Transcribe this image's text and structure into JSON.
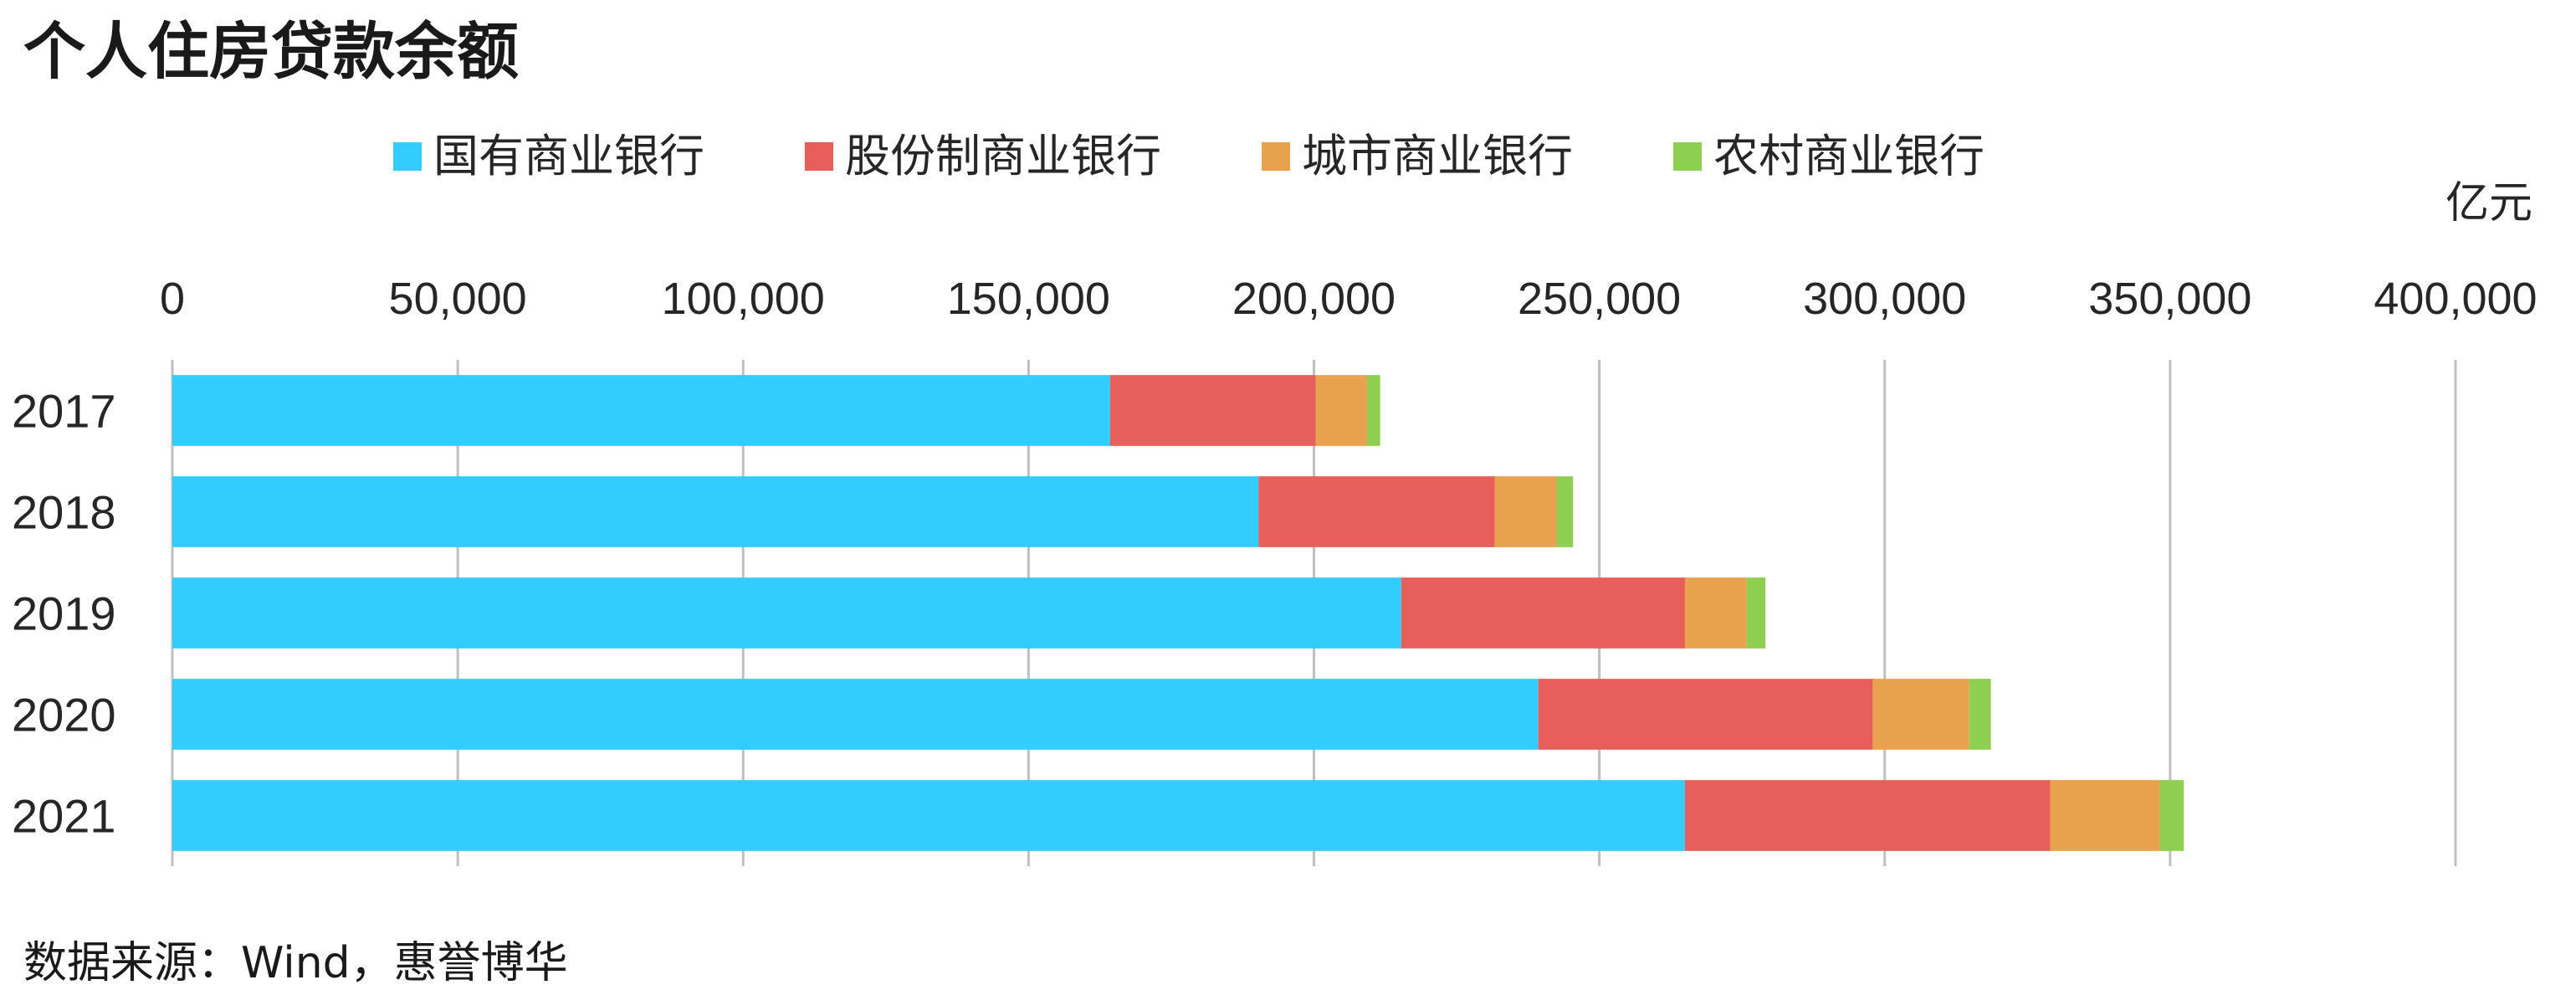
{
  "chart_data": {
    "type": "bar",
    "orientation": "horizontal",
    "stacked": true,
    "title": "个人住房贷款余额",
    "unit_label": "亿元",
    "categories": [
      "2017",
      "2018",
      "2019",
      "2020",
      "2021"
    ],
    "series": [
      {
        "name": "国有商业银行",
        "color": "#33CCFF",
        "values": [
          164300,
          190300,
          215300,
          239300,
          265000
        ]
      },
      {
        "name": "股份制商业银行",
        "color": "#E85E5A",
        "values": [
          36000,
          41400,
          49700,
          58600,
          64000
        ]
      },
      {
        "name": "城市商业银行",
        "color": "#E8A24E",
        "values": [
          9000,
          10800,
          10800,
          16900,
          19200
        ]
      },
      {
        "name": "农村商业银行",
        "color": "#8ECF52",
        "values": [
          2300,
          2900,
          3300,
          3800,
          4200
        ]
      }
    ],
    "xlim": [
      0,
      400000
    ],
    "x_ticks": [
      0,
      50000,
      100000,
      150000,
      200000,
      250000,
      300000,
      350000,
      400000
    ],
    "x_tick_labels": [
      "0",
      "50,000",
      "100,000",
      "150,000",
      "200,000",
      "250,000",
      "300,000",
      "350,000",
      "400,000"
    ],
    "x_axis_position": "top",
    "grid": true,
    "legend_position": "top"
  },
  "source": "数据来源：Wind，惠誉博华"
}
